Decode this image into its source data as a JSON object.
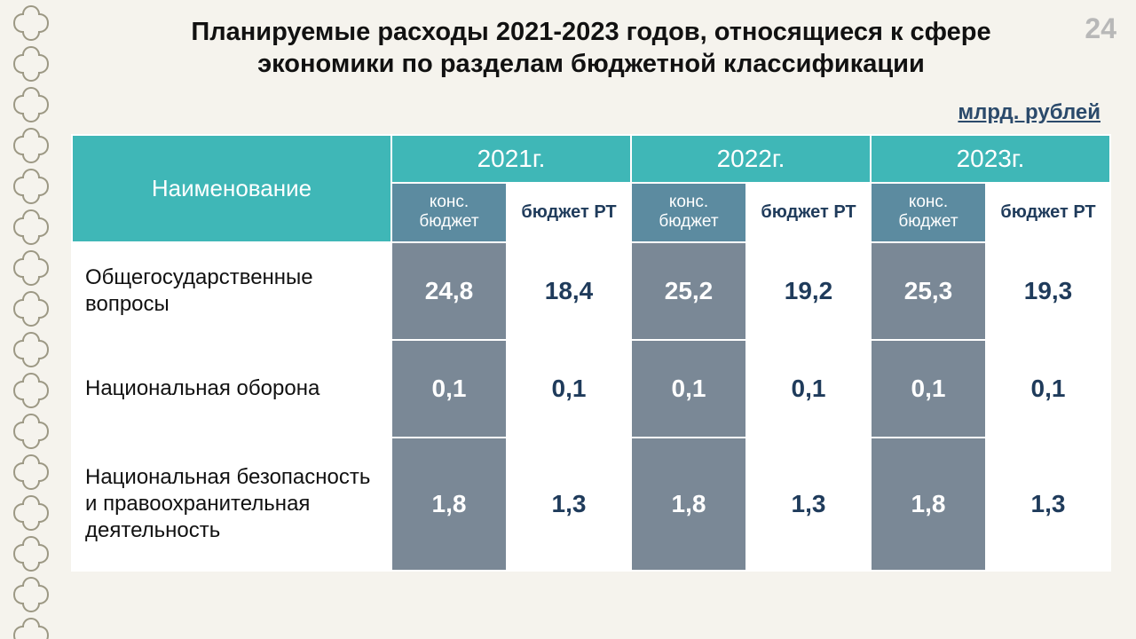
{
  "page_number": "24",
  "title_line1": "Планируемые расходы 2021-2023 годов, относящиеся к сфере",
  "title_line2": "экономики по разделам бюджетной классификации",
  "unit_label": "млрд. рублей",
  "table": {
    "name_header": "Наименование",
    "years": [
      "2021г.",
      "2022г.",
      "2023г."
    ],
    "sub_kons": "конс.\nбюджет",
    "sub_rt": "бюджет РТ",
    "rows": [
      {
        "name": "Общегосударственные вопросы",
        "vals": [
          "24,8",
          "18,4",
          "25,2",
          "19,2",
          "25,3",
          "19,3"
        ]
      },
      {
        "name": "Национальная оборона",
        "vals": [
          "0,1",
          "0,1",
          "0,1",
          "0,1",
          "0,1",
          "0,1"
        ]
      },
      {
        "name": "Национальная безопасность и правоохранительная деятельность",
        "vals": [
          "1,8",
          "1,3",
          "1,8",
          "1,3",
          "1,8",
          "1,3"
        ]
      }
    ]
  },
  "colors": {
    "header_teal": "#3fb7b7",
    "subhead_blue": "#5c8ba0",
    "cell_grey": "#7a8896",
    "text_navy": "#1f3b5b",
    "background": "#f5f3ed",
    "ornament_stroke": "#9c9884"
  }
}
